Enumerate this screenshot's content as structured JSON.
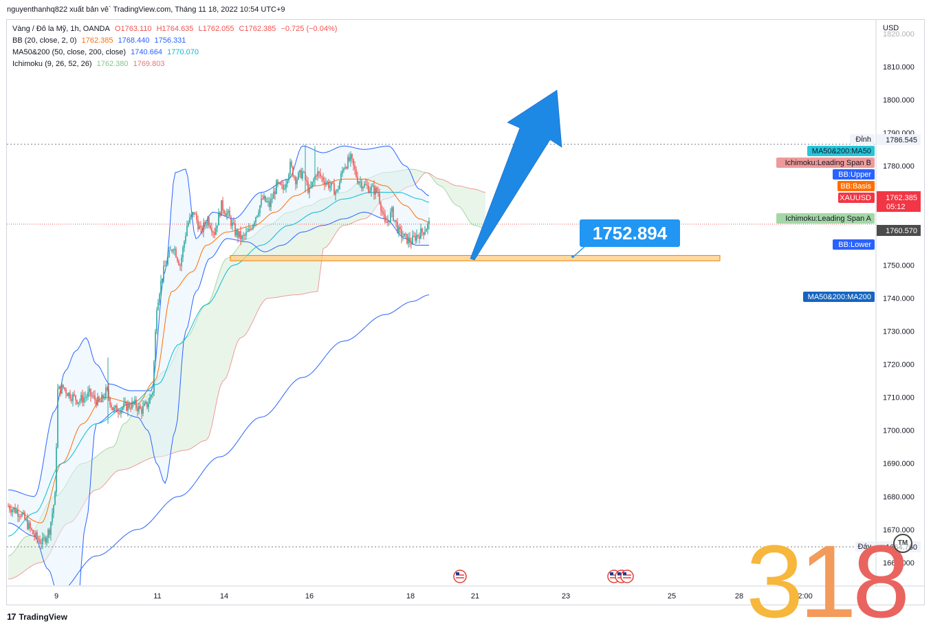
{
  "header": {
    "title": "nguyenthanhq822 xuất bản vê` TradingView.com, Tháng 11 18, 2022 10:54 UTC+9"
  },
  "legend": {
    "symbol": "Vàng / Đô la Mỹ, 1h, OANDA",
    "open": "O1763.110",
    "high": "H1764.635",
    "low": "L1762.055",
    "close": "C1762.385",
    "change": "−0.725 (−0.04%)",
    "bb_label": "BB (20, close, 2, 0)",
    "bb_v1": "1762.385",
    "bb_v2": "1768.440",
    "bb_v3": "1756.331",
    "ma_label": "MA50&200 (50, close, 200, close)",
    "ma_v1": "1740.664",
    "ma_v2": "1770.070",
    "ichi_label": "Ichimoku (9, 26, 52, 26)",
    "ichi_v1": "1762.380",
    "ichi_v2": "1769.803"
  },
  "colors": {
    "up": "#26a69a",
    "down": "#ef5350",
    "bb_band": "#2962ff",
    "bb_basis": "#ff6d00",
    "ma50": "#00bcd4",
    "ma200": "#2962ff",
    "span_a": "#a5d6a7",
    "span_b": "#ef9a9a",
    "arrow": "#1e88e5",
    "zone": "#ffcc80"
  },
  "chart_data": {
    "type": "candlestick",
    "currency_label": "USD",
    "y_ticks": [
      "1810.000",
      "1800.000",
      "1790.000",
      "1780.000",
      "1770.000",
      "1760.000",
      "1750.000",
      "1740.000",
      "1730.000",
      "1720.000",
      "1710.000",
      "1700.000",
      "1690.000",
      "1680.000",
      "1670.000",
      "1660.000"
    ],
    "ylim": [
      1652,
      1823
    ],
    "x_ticks": [
      "9",
      "11",
      "14",
      "16",
      "18",
      "21",
      "23",
      "25",
      "28",
      "12:00"
    ],
    "price_tags": [
      {
        "label": "Đỉnh",
        "value": "1786.545"
      },
      {
        "label": "MA50&200:MA50",
        "value": ""
      },
      {
        "label": "Ichimoku:Leading Span B",
        "value": ""
      },
      {
        "label": "BB:Upper",
        "value": ""
      },
      {
        "label": "BB:Basis",
        "value": ""
      },
      {
        "label": "XAUUSD",
        "value": "1762.385",
        "countdown": "05:12"
      },
      {
        "label": "Ichimoku:Leading Span A",
        "value": "1760.570"
      },
      {
        "label": "BB:Lower",
        "value": ""
      },
      {
        "label": "MA50&200:MA200",
        "value": ""
      },
      {
        "label": "Đáy",
        "value": "1664.760"
      }
    ],
    "annotation": {
      "text": "1752.894",
      "value": 1752.894
    },
    "support_zone": [
      1751.3,
      1752.9
    ],
    "top_line": 1786.545,
    "bottom_line": 1664.76,
    "current_price": 1762.385
  },
  "watermark": {
    "digits": [
      "3",
      "1",
      "8"
    ],
    "tm": "TM"
  },
  "footer": {
    "brand": "TradingView"
  }
}
